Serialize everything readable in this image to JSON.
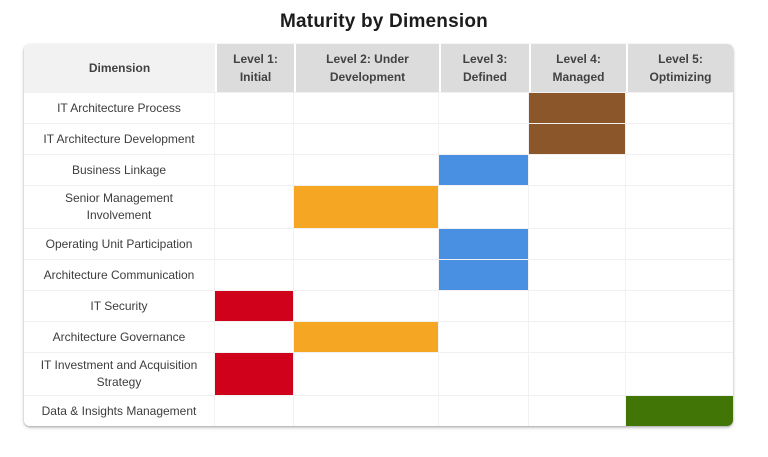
{
  "chart_data": {
    "type": "heatmap",
    "title": "Maturity by Dimension",
    "columns": [
      "Dimension",
      "Level 1: Initial",
      "Level 2: Under Development",
      "Level 3: Defined",
      "Level 4: Managed",
      "Level 5: Optimizing"
    ],
    "rows": [
      {
        "dimension": "IT Architecture Process",
        "level": 4
      },
      {
        "dimension": "IT Architecture Development",
        "level": 4
      },
      {
        "dimension": "Business Linkage",
        "level": 3
      },
      {
        "dimension": "Senior Management Involvement",
        "level": 2
      },
      {
        "dimension": "Operating Unit Participation",
        "level": 3
      },
      {
        "dimension": "Architecture Communication",
        "level": 3
      },
      {
        "dimension": "IT Security",
        "level": 1
      },
      {
        "dimension": "Architecture Governance",
        "level": 2
      },
      {
        "dimension": "IT Investment and Acquisition Strategy",
        "level": 1
      },
      {
        "dimension": "Data & Insights Management",
        "level": 5
      }
    ],
    "level_colors": {
      "1": "#d0021b",
      "2": "#f5a623",
      "3": "#4a90e2",
      "4": "#8b572a",
      "5": "#417505"
    },
    "header_background": "#dcdcdc",
    "dimension_header_background": "#f2f2f2",
    "gridline_color": "#f1f1f1",
    "legend_position": "none",
    "grid": true
  }
}
